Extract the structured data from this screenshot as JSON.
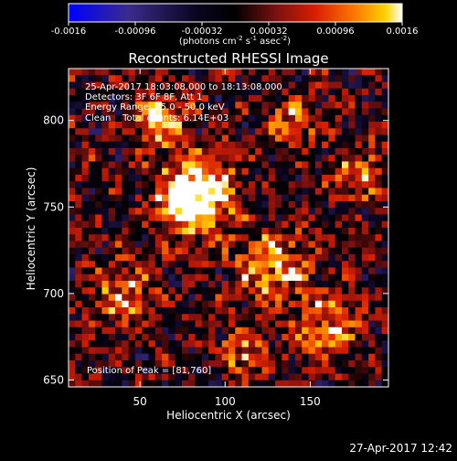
{
  "colorbar": {
    "tick_labels": [
      "-0.0016",
      "-0.00096",
      "-0.00032",
      "0.00032",
      "0.00096",
      "0.0016"
    ],
    "tick_values": [
      -0.0016,
      -0.00096,
      -0.00032,
      0.00032,
      0.00096,
      0.0016
    ],
    "range": [
      -0.0016,
      0.0016
    ],
    "units_main": "(photons cm",
    "units_sup1": "-2",
    "units_mid": " s",
    "units_sup2": "-1",
    "units_end": " asec",
    "units_sup3": "-2",
    "units_close": ")",
    "colors": [
      "#0000ff",
      "#3a2b8c",
      "#000000",
      "#7a1010",
      "#d81e00",
      "#ff7a00",
      "#ffd200",
      "#ffffff"
    ]
  },
  "chart_data": {
    "type": "heatmap",
    "title": "Reconstructed RHESSI Image",
    "xlabel": "Heliocentric X (arcsec)",
    "ylabel": "Heliocentric Y (arcsec)",
    "xlim": [
      8,
      196
    ],
    "ylim": [
      646,
      830
    ],
    "x_ticks": [
      50,
      100,
      150
    ],
    "y_ticks": [
      650,
      700,
      750,
      800
    ],
    "peak_location": [
      81,
      760
    ],
    "brightest_regions": [
      {
        "x": 82,
        "y": 756,
        "level": "high"
      },
      {
        "x": 62,
        "y": 800,
        "level": "medium"
      },
      {
        "x": 130,
        "y": 715,
        "level": "medium"
      },
      {
        "x": 160,
        "y": 680,
        "level": "medium"
      }
    ]
  },
  "annotations": {
    "line1": "25-Apr-2017 18:03:08.000 to 18:13:08.000",
    "line2": "Detectors: 3F 6F 8F, Att 1",
    "line3": "Energy Range: 25.0 - 50.0 keV",
    "line4": "Clean    Total counts: 6.14E+03",
    "peak": "Position of Peak = [81,760]"
  },
  "footer": {
    "timestamp": "27-Apr-2017 12:42"
  }
}
